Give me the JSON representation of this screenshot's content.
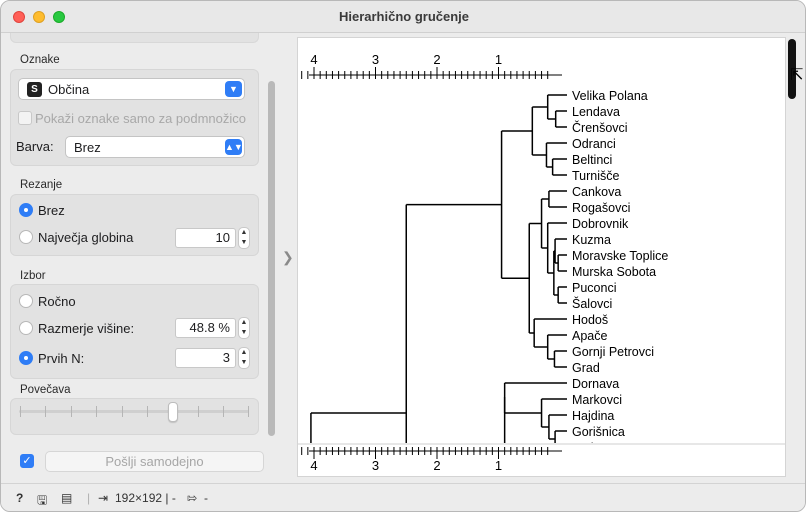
{
  "window": {
    "title": "Hierarhično gručenje"
  },
  "labels_section": {
    "title": "Oznake",
    "variable": "Občina",
    "variable_icon": "S",
    "show_subset_label": "Pokaži oznake samo za podmnožico",
    "color_label": "Barva:",
    "color_value": "Brez"
  },
  "pruning_section": {
    "title": "Rezanje",
    "option_none": "Brez",
    "option_max_depth": "Največja globina",
    "max_depth_value": "10"
  },
  "selection_section": {
    "title": "Izbor",
    "option_manual": "Ročno",
    "option_height_ratio": "Razmerje višine:",
    "height_ratio_value": "48.8 %",
    "option_top_n": "Prvih N:",
    "top_n_value": "3"
  },
  "zoom_section": {
    "title": "Povečava",
    "level": 0.66
  },
  "send": {
    "auto_label": "Pošlji samodejno",
    "checked": true
  },
  "axis": {
    "ticks": [
      "4",
      "3",
      "2",
      "1"
    ]
  },
  "leaves": [
    "Velika Polana",
    "Lendava",
    "Črenšovci",
    "Odranci",
    "Beltinci",
    "Turnišče",
    "Cankova",
    "Rogašovci",
    "Dobrovnik",
    "Kuzma",
    "Moravske Toplice",
    "Murska Sobota",
    "Puconci",
    "Šalovci",
    "Hodoš",
    "Apače",
    "Gornji Petrovci",
    "Grad",
    "Dornava",
    "Markovci",
    "Hajdina",
    "Gorišnica",
    "Ptuj"
  ],
  "statusbar": {
    "data_size": "192×192 | -",
    "output": "-"
  },
  "colors": {
    "accent": "#2f7df6",
    "close": "#ff5f57",
    "minimize": "#febc2e",
    "maximize": "#28c840"
  }
}
